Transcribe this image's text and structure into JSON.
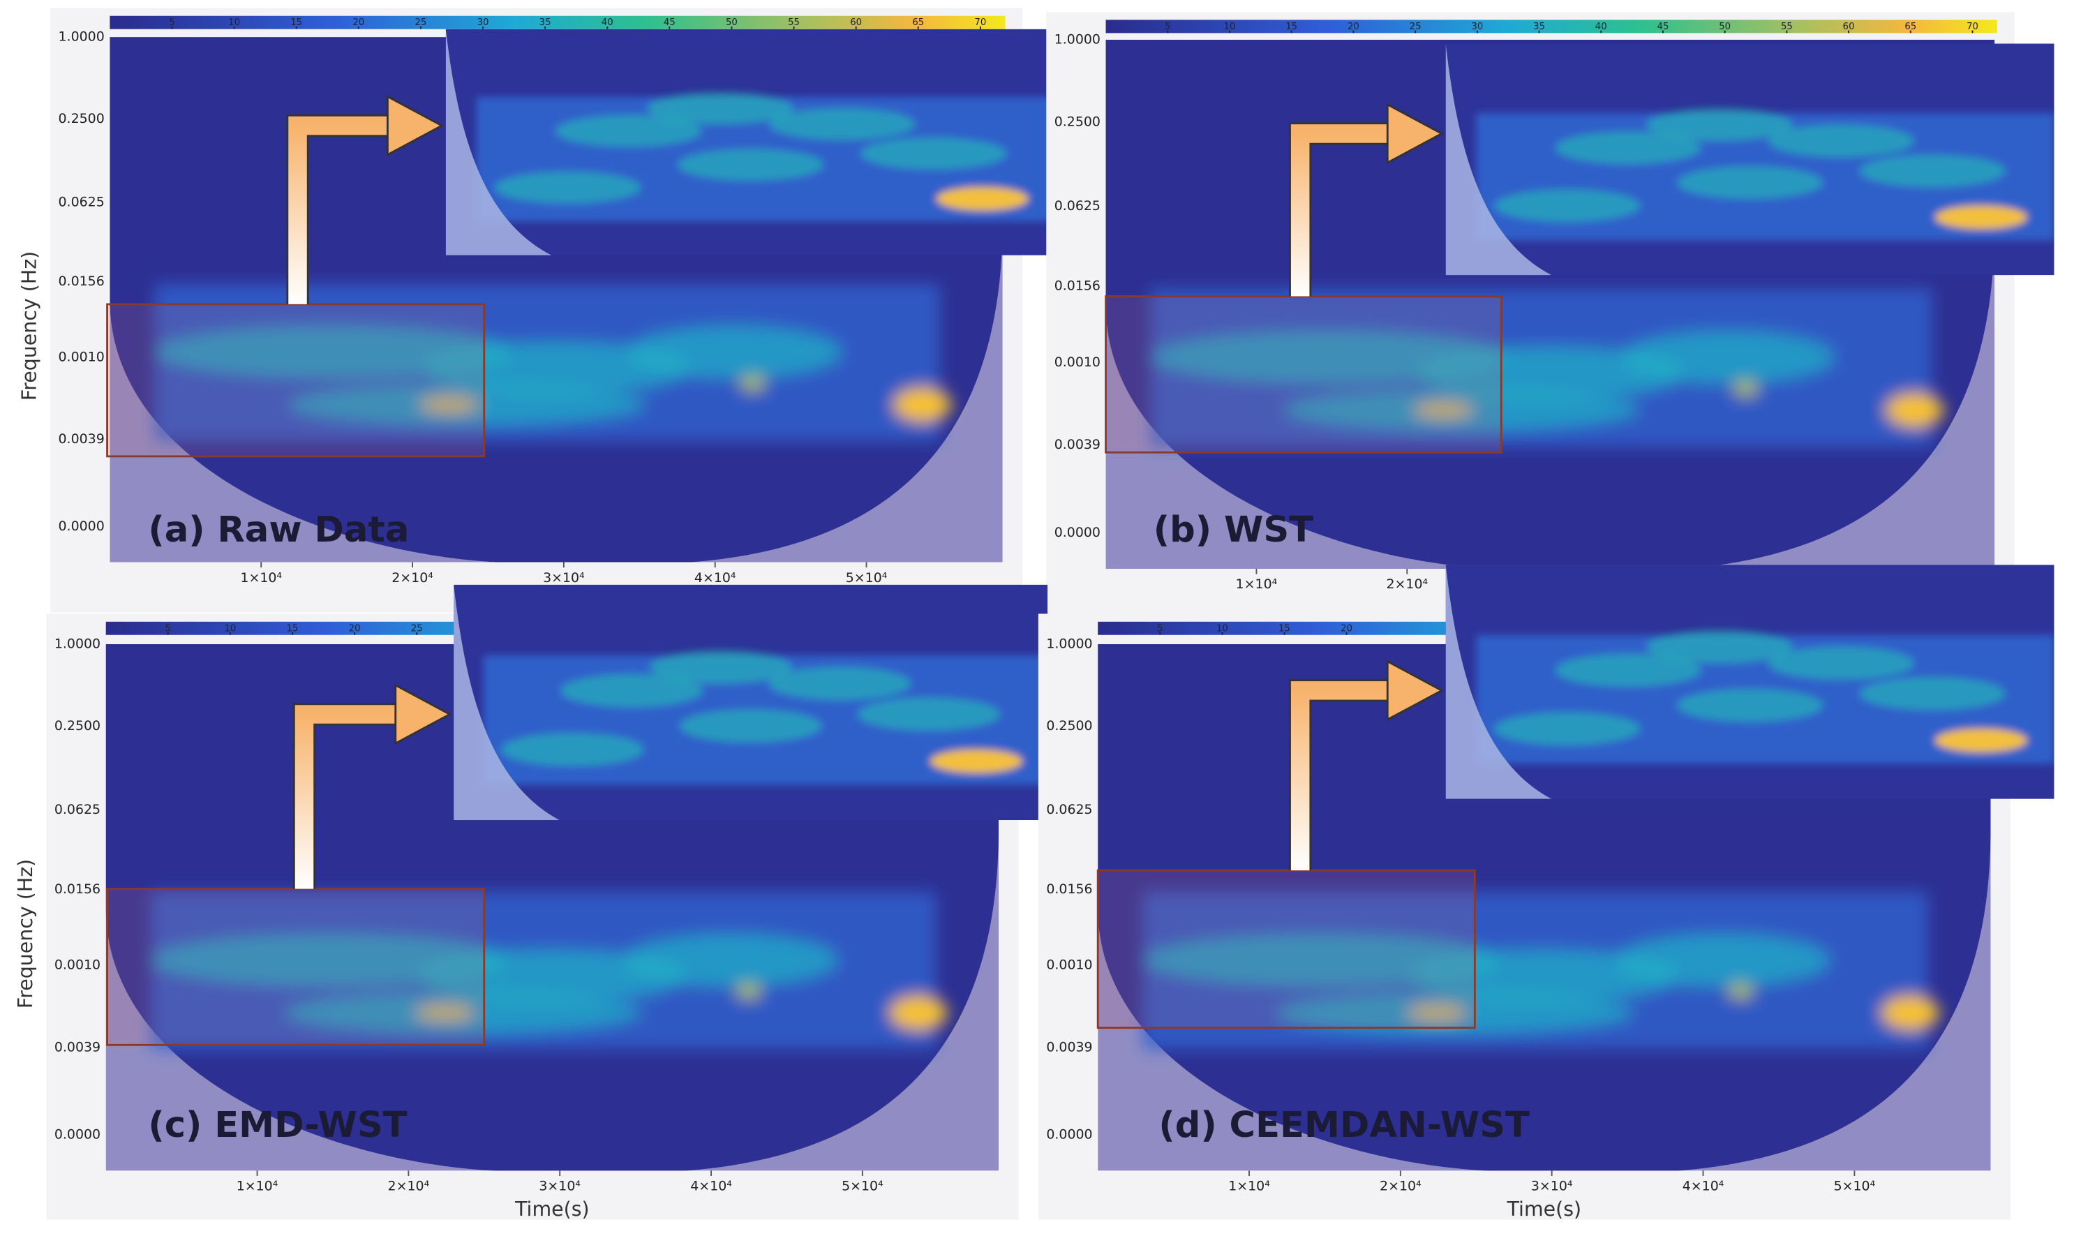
{
  "chart_data": [
    {
      "type": "heatmap",
      "title": "(a) Raw Data",
      "ylabel": "Frequency (Hz)",
      "y_labels": [
        "1.0000",
        "0.2500",
        "0.0625",
        "0.0156",
        "0.0010",
        "0.0039",
        "0.0000"
      ],
      "xlim": [
        0,
        59000
      ],
      "xticks": [
        {
          "value": 10000,
          "label": "1×10⁴"
        },
        {
          "value": 20000,
          "label": "2×10⁴"
        },
        {
          "value": 30000,
          "label": "3×10⁴"
        },
        {
          "value": 40000,
          "label": "4×10⁴"
        },
        {
          "value": 50000,
          "label": "5×10⁴"
        }
      ],
      "clim": [
        0,
        72
      ],
      "colorbar_ticks": [
        5,
        10,
        15,
        20,
        25,
        30,
        35,
        40,
        45,
        50,
        55,
        60,
        65,
        70
      ]
    },
    {
      "type": "heatmap",
      "title": "(b) WST",
      "y_labels": [
        "1.0000",
        "0.2500",
        "0.0625",
        "0.0156",
        "0.0010",
        "0.0039",
        "0.0000"
      ],
      "xlim": [
        0,
        59000
      ],
      "xticks": [
        {
          "value": 10000,
          "label": "1×10⁴"
        },
        {
          "value": 20000,
          "label": "2×10⁴"
        }
      ],
      "clim": [
        0,
        72
      ],
      "colorbar_ticks": [
        5,
        10,
        15,
        20,
        25,
        30,
        35,
        40,
        45,
        50,
        55,
        60,
        65,
        70
      ]
    },
    {
      "type": "heatmap",
      "title": "(c) EMD-WST",
      "ylabel": "Frequency (Hz)",
      "xlabel": "Time(s)",
      "y_labels": [
        "1.0000",
        "0.2500",
        "0.0625",
        "0.0156",
        "0.0010",
        "0.0039",
        "0.0000"
      ],
      "xlim": [
        0,
        59000
      ],
      "xticks": [
        {
          "value": 10000,
          "label": "1×10⁴"
        },
        {
          "value": 20000,
          "label": "2×10⁴"
        },
        {
          "value": 30000,
          "label": "3×10⁴"
        },
        {
          "value": 40000,
          "label": "4×10⁴"
        },
        {
          "value": 50000,
          "label": "5×10⁴"
        }
      ],
      "clim": [
        0,
        72
      ],
      "colorbar_ticks": [
        5,
        10,
        15,
        20,
        25
      ]
    },
    {
      "type": "heatmap",
      "title": "(d) CEEMDAN-WST",
      "xlabel": "Time(s)",
      "y_labels": [
        "1.0000",
        "0.2500",
        "0.0625",
        "0.0156",
        "0.0010",
        "0.0039",
        "0.0000"
      ],
      "xlim": [
        0,
        59000
      ],
      "xticks": [
        {
          "value": 10000,
          "label": "1×10⁴"
        },
        {
          "value": 20000,
          "label": "2×10⁴"
        },
        {
          "value": 30000,
          "label": "3×10⁴"
        },
        {
          "value": 40000,
          "label": "4×10⁴"
        },
        {
          "value": 50000,
          "label": "5×10⁴"
        }
      ],
      "clim": [
        0,
        72
      ],
      "colorbar_ticks": [
        5,
        10,
        15,
        20
      ]
    }
  ]
}
